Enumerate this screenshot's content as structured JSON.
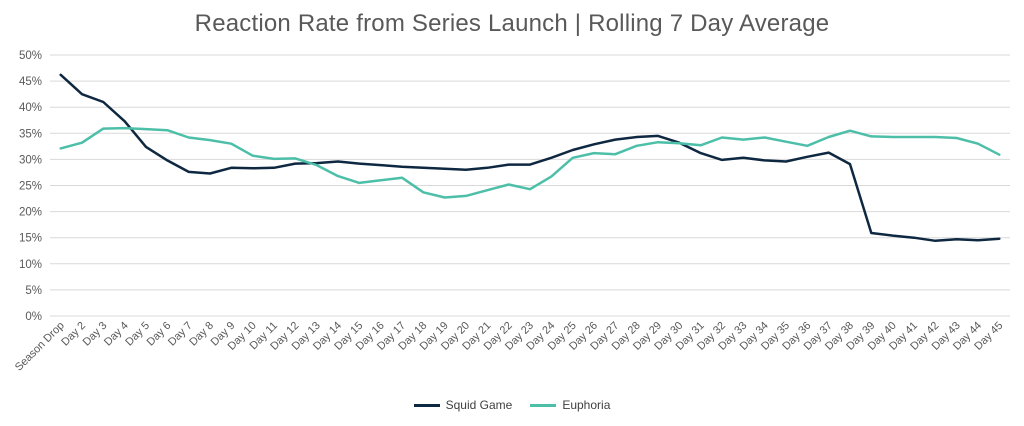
{
  "chart_data": {
    "type": "line",
    "title": "Reaction Rate from Series Launch | Rolling 7 Day Average",
    "categories": [
      "Season Drop",
      "Day 2",
      "Day 3",
      "Day 4",
      "Day 5",
      "Day 6",
      "Day 7",
      "Day 8",
      "Day 9",
      "Day 10",
      "Day 11",
      "Day 12",
      "Day 13",
      "Day 14",
      "Day 15",
      "Day 16",
      "Day 17",
      "Day 18",
      "Day 19",
      "Day 20",
      "Day 21",
      "Day 22",
      "Day 23",
      "Day 24",
      "Day 25",
      "Day 26",
      "Day 27",
      "Day 28",
      "Day 29",
      "Day 30",
      "Day 31",
      "Day 32",
      "Day 33",
      "Day 34",
      "Day 35",
      "Day 36",
      "Day 37",
      "Day 38",
      "Day 39",
      "Day 40",
      "Day 41",
      "Day 42",
      "Day 43",
      "Day 44",
      "Day 45"
    ],
    "yticks": [
      "0%",
      "5%",
      "10%",
      "15%",
      "20%",
      "25%",
      "30%",
      "35%",
      "40%",
      "45%",
      "50%"
    ],
    "ylim": [
      0,
      50
    ],
    "grid": true,
    "legend_position": "bottom",
    "series": [
      {
        "name": "Squid Game",
        "color": "#0e2841",
        "values": [
          46.2,
          42.5,
          41.0,
          37.3,
          32.4,
          29.8,
          27.6,
          27.3,
          28.4,
          28.3,
          28.4,
          29.2,
          29.3,
          29.6,
          29.2,
          28.9,
          28.6,
          28.4,
          28.2,
          28.0,
          28.4,
          29.0,
          29.0,
          30.3,
          31.8,
          32.9,
          33.8,
          34.3,
          34.5,
          33.2,
          31.2,
          29.9,
          30.3,
          29.8,
          29.6,
          30.5,
          31.3,
          29.1,
          15.9,
          15.4,
          15.0,
          14.4,
          14.7,
          14.5,
          14.8
        ]
      },
      {
        "name": "Euphoria",
        "color": "#4dbfa8",
        "values": [
          32.1,
          33.2,
          35.9,
          36.0,
          35.8,
          35.6,
          34.2,
          33.7,
          33.0,
          30.7,
          30.1,
          30.2,
          28.9,
          26.8,
          25.5,
          26.0,
          26.5,
          23.7,
          22.7,
          23.0,
          24.1,
          25.2,
          24.3,
          26.7,
          30.3,
          31.2,
          31.0,
          32.6,
          33.3,
          33.1,
          32.7,
          34.2,
          33.8,
          34.2,
          33.4,
          32.6,
          34.3,
          35.5,
          34.4,
          34.3,
          34.3,
          34.3,
          34.1,
          33.0,
          30.9
        ]
      }
    ]
  }
}
